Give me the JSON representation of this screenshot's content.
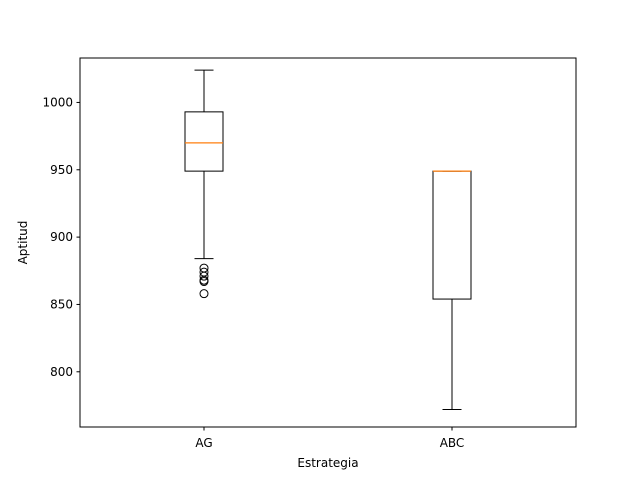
{
  "chart_data": {
    "type": "box",
    "title": "",
    "xlabel": "Estrategia",
    "ylabel": "Aptitud",
    "categories": [
      "AG",
      "ABC"
    ],
    "ylim": [
      759,
      1033
    ],
    "yticks": [
      800,
      850,
      900,
      950,
      1000
    ],
    "ytick_labels": [
      "800",
      "850",
      "900",
      "950",
      "1000"
    ],
    "grid": false,
    "legend": "none",
    "boxes": [
      {
        "label": "AG",
        "whisker_low": 884,
        "q1": 949,
        "median": 970,
        "q3": 993,
        "whisker_high": 1024,
        "outliers": [
          858,
          867,
          868,
          871,
          874,
          877
        ]
      },
      {
        "label": "ABC",
        "whisker_low": 772,
        "q1": 854,
        "median": 949,
        "q3": 949,
        "whisker_high": 949,
        "outliers": []
      }
    ],
    "colors": {
      "box": "#000000",
      "median": "#ff7f0e",
      "axes": "#000000",
      "background": "#ffffff"
    }
  }
}
